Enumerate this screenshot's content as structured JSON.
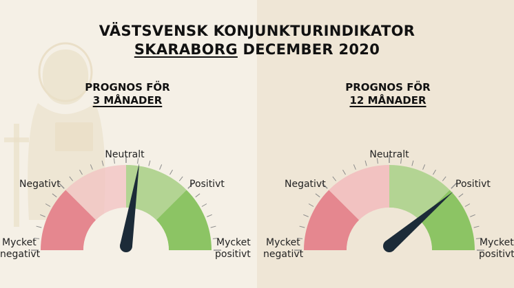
{
  "colors": {
    "left_bg": "#f5f0e6",
    "right_bg": "#efe6d6",
    "very_negative": "#e5878f",
    "negative": "#f2c2c1",
    "neutral_positive": "#b3d493",
    "very_positive": "#8cc464",
    "needle": "#1c2b38",
    "decoration": "#eadfc8"
  },
  "decoration": {
    "background_figure": "saint-icon"
  },
  "title": {
    "line1": "VÄSTSVENSK KONJUNKTURINDIKATOR",
    "region": "SKARABORG",
    "period": "DECEMBER 2020"
  },
  "gauges": [
    {
      "heading_line1": "PROGNOS FÖR",
      "heading_line2": "3 MÅNADER",
      "needle_value": 0.1,
      "labels": {
        "neutral": "Neutralt",
        "negative": "Negativt",
        "positive": "Positivt",
        "very_negative_1": "Mycket",
        "very_negative_2": "negativt",
        "very_positive_1": "Mycket",
        "very_positive_2": "positivt"
      }
    },
    {
      "heading_line1": "PROGNOS FÖR",
      "heading_line2": "12 MÅNADER",
      "needle_value": 0.55,
      "labels": {
        "neutral": "Neutralt",
        "negative": "Negativt",
        "positive": "Positivt",
        "very_negative_1": "Mycket",
        "very_negative_2": "negativt",
        "very_positive_1": "Mycket",
        "very_positive_2": "positivt"
      }
    }
  ]
}
